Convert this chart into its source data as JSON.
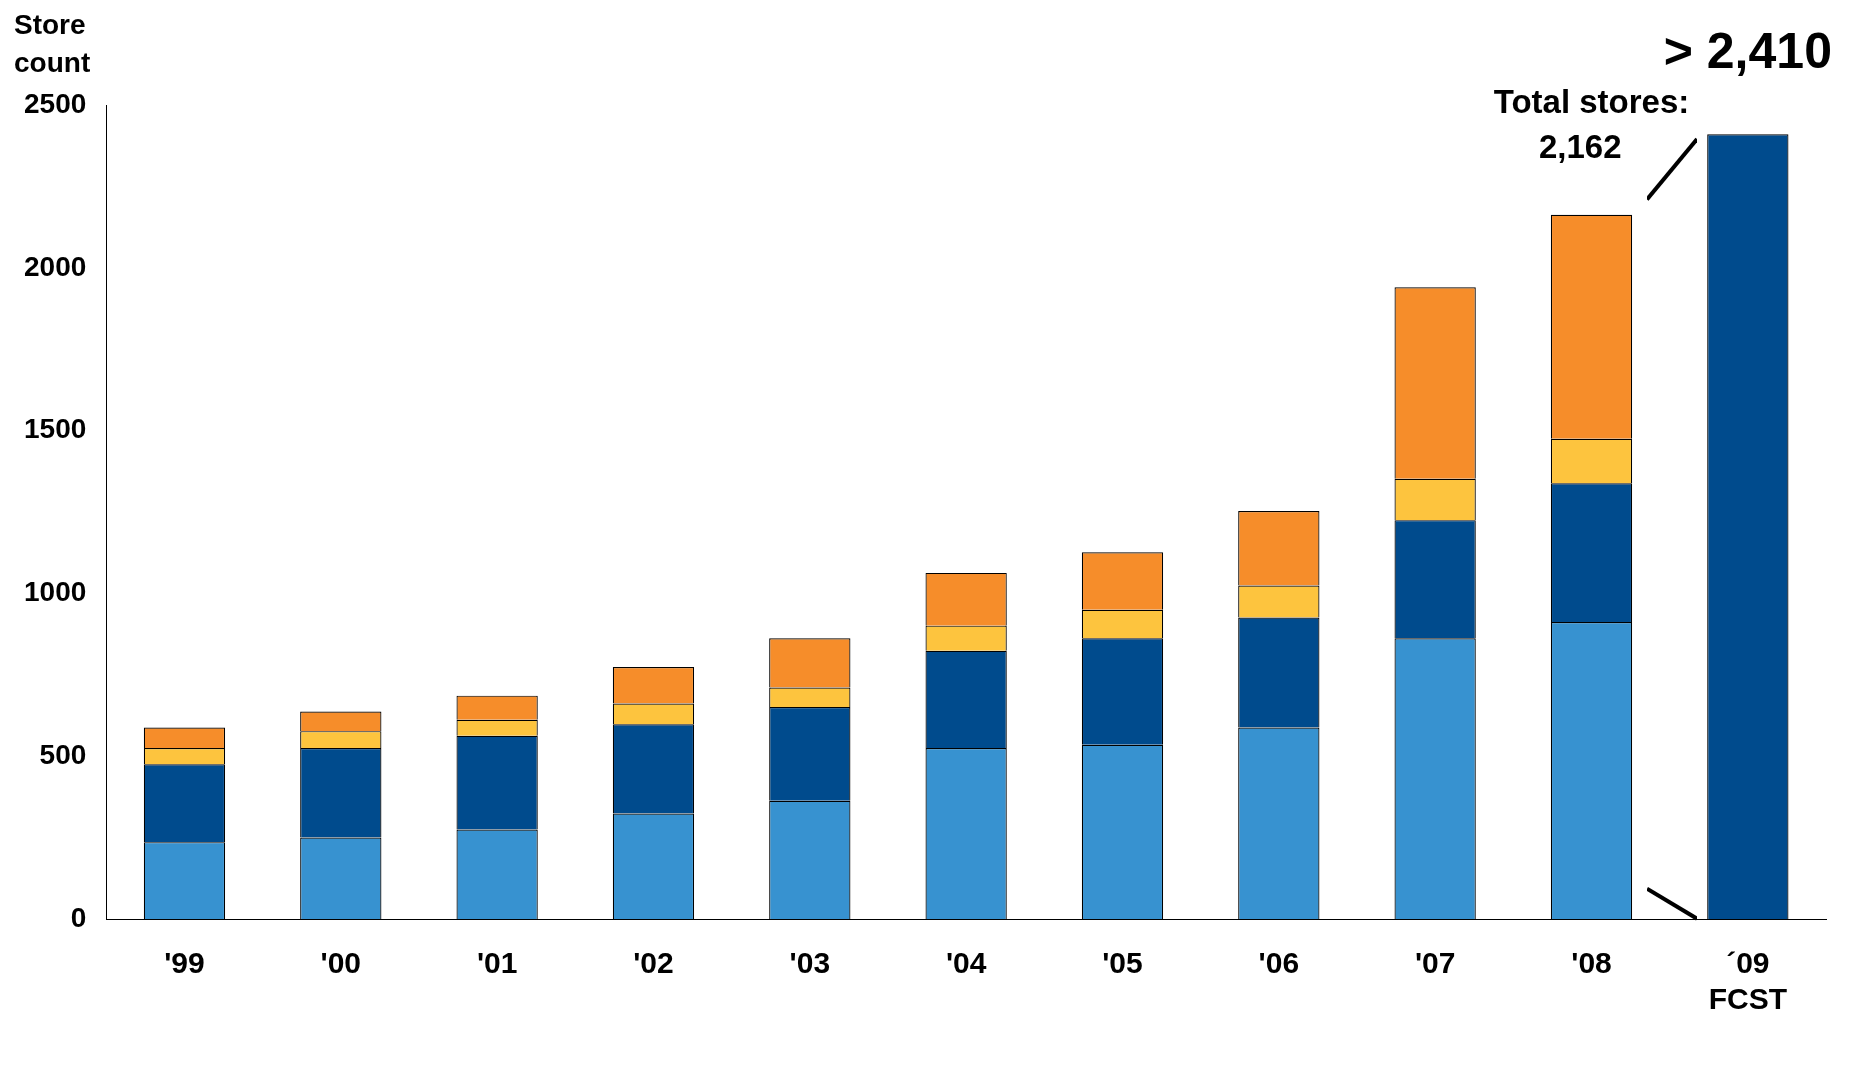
{
  "chart_data": {
    "type": "bar",
    "stacked": true,
    "ylabel": "Store count",
    "categories": [
      "'99",
      "'00",
      "'01",
      "'02",
      "'03",
      "'04",
      "'05",
      "'06",
      "'07",
      "'08",
      "´09 FCST"
    ],
    "series": [
      {
        "color": "#3792d0",
        "values": [
          236,
          250,
          275,
          324,
          363,
          525,
          535,
          588,
          862,
          912,
          null
        ]
      },
      {
        "color": "#004b8d",
        "values": [
          239,
          275,
          288,
          274,
          288,
          299,
          327,
          338,
          363,
          426,
          null
        ]
      },
      {
        "color": "#fdc43e",
        "values": [
          50,
          52,
          49,
          64,
          60,
          77,
          88,
          98,
          127,
          137,
          null
        ]
      },
      {
        "color": "#f68d2a",
        "values": [
          63,
          60,
          74,
          112,
          151,
          162,
          176,
          229,
          588,
          688,
          null
        ]
      },
      {
        "color": "#004b8d",
        "values": [
          null,
          null,
          null,
          null,
          null,
          null,
          null,
          null,
          null,
          null,
          2410
        ],
        "value_labels": [
          null,
          null,
          null,
          null,
          null,
          null,
          null,
          null,
          null,
          null,
          "> 2,410"
        ]
      }
    ],
    "ylim": [
      0,
      2500
    ],
    "yticks": [
      0,
      500,
      1000,
      1500,
      2000,
      2500
    ],
    "grid": false,
    "legend": false,
    "annotations": [
      {
        "text": "Total stores: 2,162",
        "x": "'08",
        "y": 2162
      }
    ]
  }
}
